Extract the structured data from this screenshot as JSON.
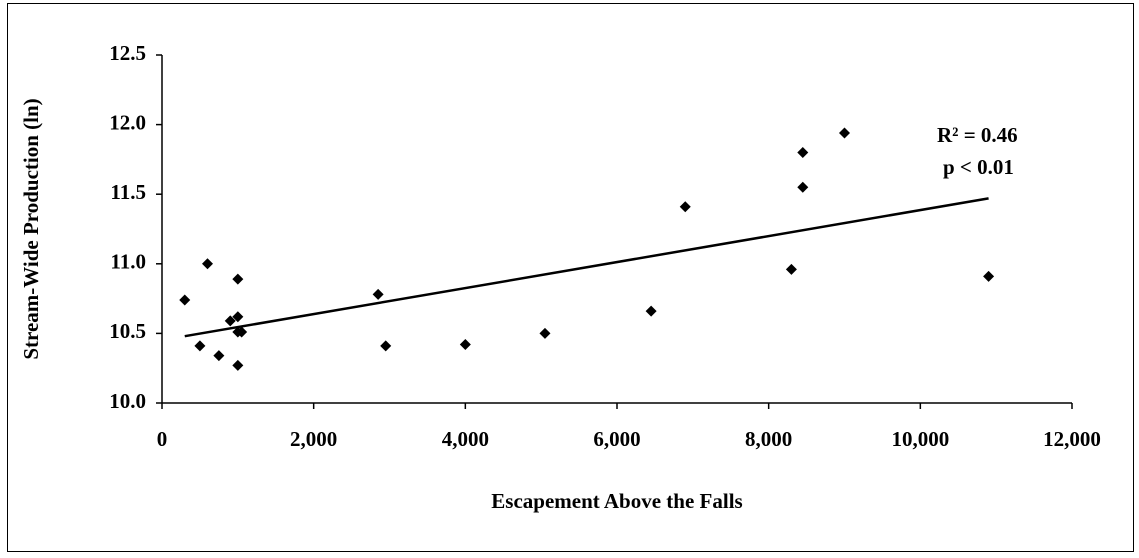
{
  "chart_data": {
    "type": "scatter",
    "x_label": "Escapement Above the Falls",
    "y_label": "Stream-Wide Production (ln)",
    "x": [
      300,
      500,
      600,
      750,
      900,
      1000,
      1000,
      1000,
      1000,
      1050,
      2850,
      2950,
      4000,
      5050,
      6450,
      6900,
      8300,
      8450,
      8450,
      9000,
      10900
    ],
    "values": [
      10.74,
      10.41,
      11.0,
      10.34,
      10.59,
      10.62,
      10.51,
      10.89,
      10.27,
      10.51,
      10.78,
      10.41,
      10.42,
      10.5,
      10.66,
      11.41,
      10.96,
      11.8,
      11.55,
      11.94,
      10.91
    ],
    "color": "#000000",
    "trendline": {
      "x": [
        300,
        10900
      ],
      "y": [
        10.48,
        11.47
      ]
    },
    "annotations": [
      "R² = 0.46",
      "p < 0.01"
    ],
    "xlim": [
      0,
      12000
    ],
    "xticks": [
      0,
      {
        "value": 2000,
        "label": "2,000"
      },
      {
        "value": 4000,
        "label": "4,000"
      },
      {
        "value": 6000,
        "label": "6,000"
      },
      {
        "value": 8000,
        "label": "8,000"
      },
      {
        "value": 10000,
        "label": "10,000"
      },
      {
        "value": 12000,
        "label": "12,000"
      }
    ],
    "ylim": [
      10,
      12.5
    ],
    "yticks": [
      {
        "value": 10,
        "label": "10.0"
      },
      10.5,
      {
        "value": 11,
        "label": "11.0"
      },
      11.5,
      {
        "value": 12,
        "label": "12.0"
      },
      12.5
    ],
    "grid": false
  }
}
